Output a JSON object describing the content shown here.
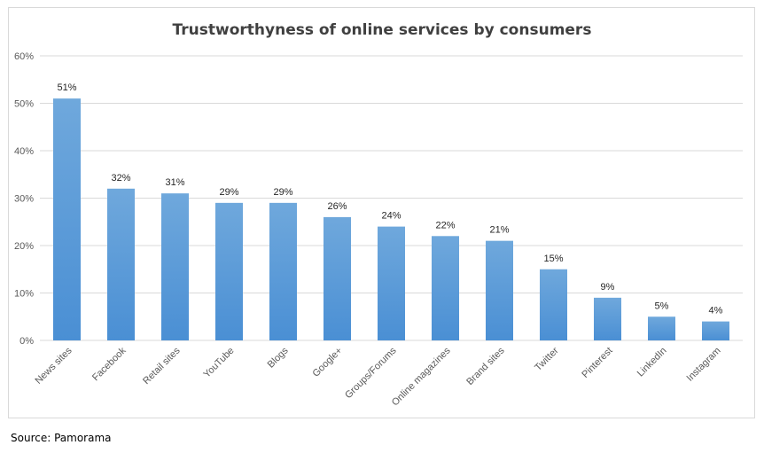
{
  "chart_data": {
    "type": "bar",
    "title": "Trustworthyness of online services by consumers",
    "xlabel": "",
    "ylabel": "",
    "ylim": [
      0,
      60
    ],
    "y_ticks": [
      "0%",
      "10%",
      "20%",
      "30%",
      "40%",
      "50%",
      "60%"
    ],
    "y_tick_values": [
      0,
      10,
      20,
      30,
      40,
      50,
      60
    ],
    "categories": [
      "News sites",
      "Facebook",
      "Retail sites",
      "YouTube",
      "Blogs",
      "Google+",
      "Groups/Forums",
      "Online magazines",
      "Brand sites",
      "Twitter",
      "Pinterest",
      "LinkedIn",
      "Instagram"
    ],
    "values": [
      51,
      32,
      31,
      29,
      29,
      26,
      24,
      22,
      21,
      15,
      9,
      5,
      4
    ],
    "data_labels": [
      "51%",
      "32%",
      "31%",
      "29%",
      "29%",
      "26%",
      "24%",
      "22%",
      "21%",
      "15%",
      "9%",
      "5%",
      "4%"
    ],
    "grid": true,
    "legend": "none",
    "bar_color_top": "#6fa8dc",
    "bar_color_bottom": "#4a8fd4"
  },
  "source": "Source: Pamorama"
}
